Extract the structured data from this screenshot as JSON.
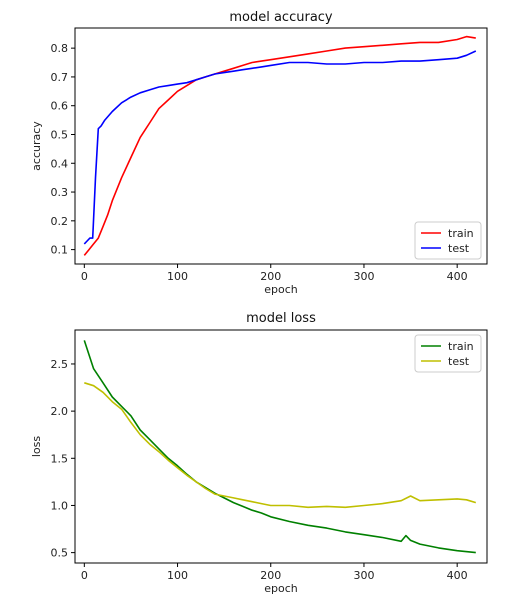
{
  "chart_data": [
    {
      "type": "line",
      "title": "model accuracy",
      "xlabel": "epoch",
      "ylabel": "accuracy",
      "xlim": [
        -10,
        432
      ],
      "ylim": [
        0.05,
        0.87
      ],
      "xticks": [
        0,
        100,
        200,
        300,
        400
      ],
      "yticks": [
        0.1,
        0.2,
        0.3,
        0.4,
        0.5,
        0.6,
        0.7,
        0.8
      ],
      "grid": false,
      "legend_position": "lower right",
      "series": [
        {
          "name": "train",
          "color": "#ff0000",
          "x": [
            0,
            5,
            10,
            15,
            20,
            25,
            30,
            40,
            50,
            60,
            70,
            80,
            90,
            100,
            110,
            120,
            130,
            140,
            150,
            160,
            170,
            180,
            190,
            200,
            220,
            240,
            260,
            280,
            300,
            320,
            340,
            360,
            380,
            400,
            410,
            420
          ],
          "y": [
            0.08,
            0.1,
            0.12,
            0.14,
            0.18,
            0.22,
            0.27,
            0.35,
            0.42,
            0.49,
            0.54,
            0.59,
            0.62,
            0.65,
            0.67,
            0.69,
            0.7,
            0.71,
            0.72,
            0.73,
            0.74,
            0.75,
            0.755,
            0.76,
            0.77,
            0.78,
            0.79,
            0.8,
            0.805,
            0.81,
            0.815,
            0.82,
            0.82,
            0.83,
            0.84,
            0.835
          ]
        },
        {
          "name": "test",
          "color": "#0000ff",
          "x": [
            0,
            3,
            6,
            9,
            12,
            15,
            18,
            22,
            30,
            40,
            50,
            60,
            70,
            80,
            90,
            100,
            110,
            120,
            130,
            140,
            150,
            160,
            170,
            180,
            190,
            200,
            220,
            240,
            260,
            280,
            300,
            320,
            340,
            360,
            380,
            400,
            410,
            420
          ],
          "y": [
            0.12,
            0.13,
            0.14,
            0.14,
            0.35,
            0.52,
            0.53,
            0.55,
            0.58,
            0.61,
            0.63,
            0.645,
            0.655,
            0.665,
            0.67,
            0.675,
            0.68,
            0.69,
            0.7,
            0.71,
            0.715,
            0.72,
            0.725,
            0.73,
            0.735,
            0.74,
            0.75,
            0.75,
            0.745,
            0.745,
            0.75,
            0.75,
            0.755,
            0.755,
            0.76,
            0.765,
            0.775,
            0.79
          ]
        }
      ]
    },
    {
      "type": "line",
      "title": "model loss",
      "xlabel": "epoch",
      "ylabel": "loss",
      "xlim": [
        -10,
        432
      ],
      "ylim": [
        0.39,
        2.86
      ],
      "xticks": [
        0,
        100,
        200,
        300,
        400
      ],
      "yticks": [
        0.5,
        1.0,
        1.5,
        2.0,
        2.5
      ],
      "ytick_labels": [
        "0.5",
        "1.0",
        "1.5",
        "2.0",
        "2.5"
      ],
      "grid": false,
      "legend_position": "upper right",
      "series": [
        {
          "name": "train",
          "color": "#008000",
          "x": [
            0,
            10,
            20,
            30,
            40,
            50,
            60,
            70,
            80,
            90,
            100,
            110,
            120,
            130,
            140,
            150,
            160,
            170,
            180,
            190,
            200,
            220,
            240,
            260,
            280,
            300,
            320,
            340,
            345,
            350,
            360,
            380,
            400,
            420
          ],
          "y": [
            2.75,
            2.45,
            2.3,
            2.15,
            2.05,
            1.95,
            1.8,
            1.7,
            1.6,
            1.5,
            1.42,
            1.33,
            1.25,
            1.19,
            1.13,
            1.08,
            1.03,
            0.99,
            0.95,
            0.92,
            0.88,
            0.83,
            0.79,
            0.76,
            0.72,
            0.69,
            0.66,
            0.62,
            0.68,
            0.63,
            0.59,
            0.55,
            0.52,
            0.5
          ]
        },
        {
          "name": "test",
          "color": "#bfbf00",
          "x": [
            0,
            10,
            20,
            30,
            40,
            50,
            60,
            70,
            80,
            90,
            100,
            110,
            120,
            130,
            140,
            150,
            160,
            170,
            180,
            190,
            200,
            220,
            240,
            260,
            280,
            300,
            320,
            340,
            350,
            360,
            380,
            400,
            410,
            420
          ],
          "y": [
            2.3,
            2.27,
            2.2,
            2.1,
            2.02,
            1.88,
            1.75,
            1.65,
            1.57,
            1.48,
            1.4,
            1.32,
            1.25,
            1.18,
            1.12,
            1.1,
            1.08,
            1.06,
            1.04,
            1.02,
            1.0,
            1.0,
            0.98,
            0.99,
            0.98,
            1.0,
            1.02,
            1.05,
            1.1,
            1.05,
            1.06,
            1.07,
            1.06,
            1.03
          ]
        }
      ]
    }
  ]
}
